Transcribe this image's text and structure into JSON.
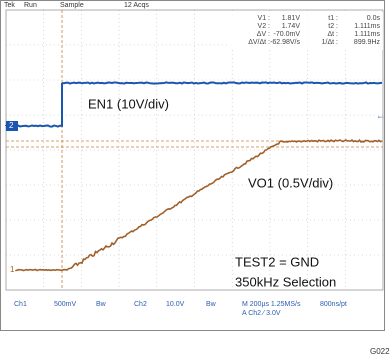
{
  "header": {
    "brand": "Tek",
    "state": "Run",
    "mode": "Sample",
    "acquisitions": "12 Acqs"
  },
  "readout": {
    "rows": [
      [
        "V1 :",
        "1.81V",
        "t1 :",
        "0.0s"
      ],
      [
        "V2 :",
        "1.74V",
        "t2 :",
        "1.111ms"
      ],
      [
        "ΔV :",
        "-70.0mV",
        "Δt :",
        "1.111ms"
      ],
      [
        "ΔV/Δt :",
        "-62.98V/s",
        "1/Δt :",
        "899.9Hz"
      ]
    ]
  },
  "channel_markers": {
    "ch2": "2",
    "ch1": "1"
  },
  "annotations": {
    "en1": "EN1 (10V/div)",
    "vo1": "VO1 (0.5V/div)",
    "test2": "TEST2 = GND",
    "frequency": "350kHz Selection"
  },
  "status": {
    "ch1": "Ch1",
    "ch1_scale": "500mV",
    "ch1_bw": "Bw",
    "ch2": "Ch2",
    "ch2_scale": "10.0V",
    "ch2_bw": "Bw",
    "timebase": "M 200µs 1.25MS/s",
    "resolution": "800ns/pt",
    "trigger": "A  Ch2  ⁄  3.0V"
  },
  "figure_id": "G022"
}
